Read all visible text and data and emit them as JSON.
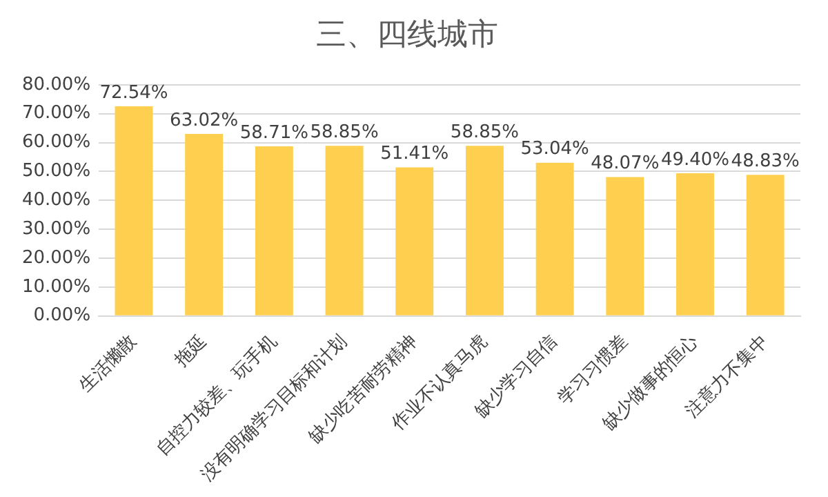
{
  "chart_data": {
    "type": "bar",
    "title": "三、四线城市",
    "categories": [
      "生活懒散",
      "拖延",
      "自控力较差、玩手机",
      "没有明确学习目标和计划",
      "缺少吃苦耐劳精神",
      "作业不认真马虎",
      "缺少学习自信",
      "学习习惯差",
      "缺少做事的恒心",
      "注意力不集中"
    ],
    "values": [
      72.54,
      63.02,
      58.71,
      58.85,
      51.41,
      58.85,
      53.04,
      48.07,
      49.4,
      48.83
    ],
    "value_labels": [
      "72.54%",
      "63.02%",
      "58.71%",
      "58.85%",
      "51.41%",
      "58.85%",
      "53.04%",
      "48.07%",
      "49.40%",
      "48.83%"
    ],
    "color": "#ffd04f",
    "ylim": [
      0,
      80
    ],
    "yticks": [
      {
        "value": 0,
        "label": "0.00%"
      },
      {
        "value": 10,
        "label": "10.00%"
      },
      {
        "value": 20,
        "label": "20.00%"
      },
      {
        "value": 30,
        "label": "30.00%"
      },
      {
        "value": 40,
        "label": "40.00%"
      },
      {
        "value": 50,
        "label": "50.00%"
      },
      {
        "value": 60,
        "label": "60.00%"
      },
      {
        "value": 70,
        "label": "70.00%"
      },
      {
        "value": 80,
        "label": "80.00%"
      }
    ],
    "grid": "y"
  }
}
